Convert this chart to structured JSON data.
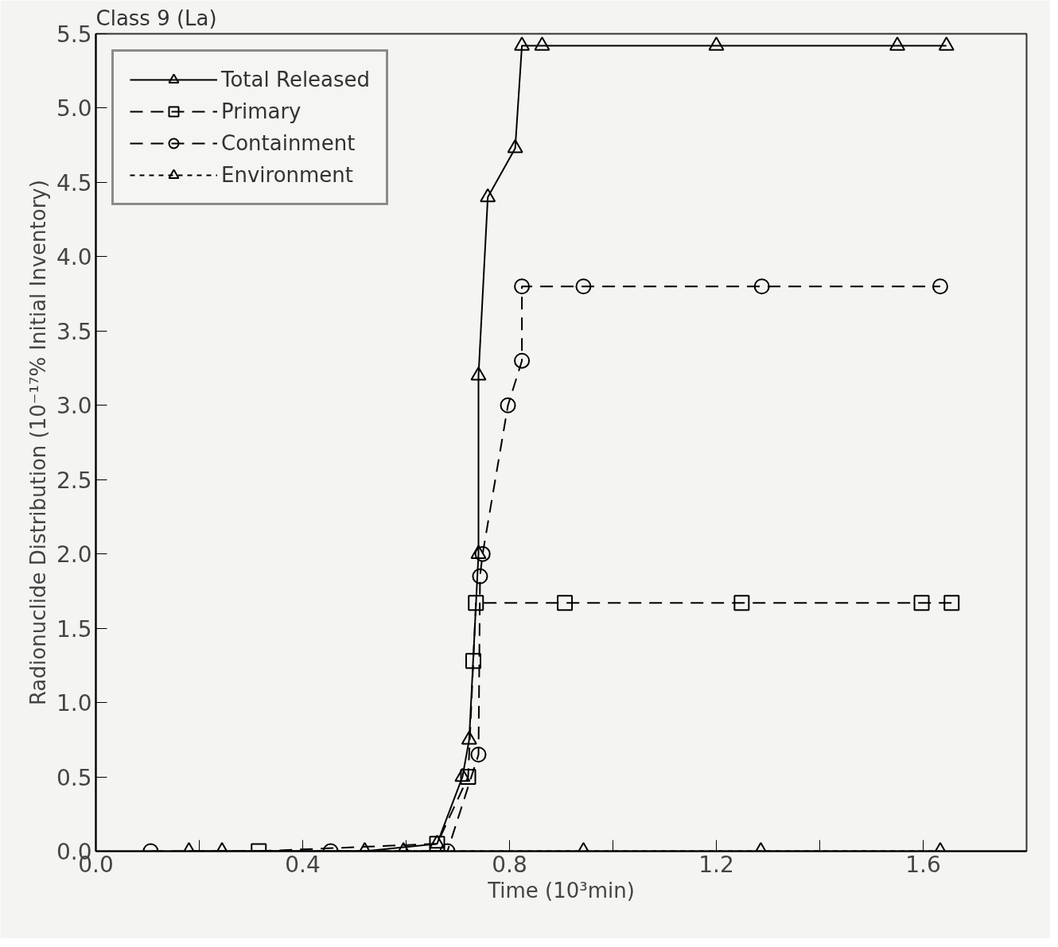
{
  "chart_data": {
    "type": "line",
    "title": "Class 9 (La)",
    "xlabel": "Time (10³min)",
    "ylabel": "Radionuclide Distribution (10⁻¹⁷% Initial Inventory)",
    "xlim": [
      0,
      1.8
    ],
    "ylim": [
      0,
      5.5
    ],
    "xticks": [
      {
        "value": 0,
        "label": "0.0"
      },
      {
        "value": 0.2,
        "label": null
      },
      {
        "value": 0.4,
        "label": "0.4"
      },
      {
        "value": 0.6,
        "label": null
      },
      {
        "value": 0.8,
        "label": "0.8"
      },
      {
        "value": 1.0,
        "label": null
      },
      {
        "value": 1.2,
        "label": "1.2"
      },
      {
        "value": 1.4,
        "label": null
      },
      {
        "value": 1.6,
        "label": "1.6"
      }
    ],
    "yticks": [
      {
        "value": 0,
        "label": "0.0"
      },
      {
        "value": 0.5,
        "label": "0.5"
      },
      {
        "value": 1.0,
        "label": "1.0"
      },
      {
        "value": 1.5,
        "label": "1.5"
      },
      {
        "value": 2.0,
        "label": "2.0"
      },
      {
        "value": 2.5,
        "label": "2.5"
      },
      {
        "value": 3.0,
        "label": "3.0"
      },
      {
        "value": 3.5,
        "label": "3.5"
      },
      {
        "value": 4.0,
        "label": "4.0"
      },
      {
        "value": 4.5,
        "label": "4.5"
      },
      {
        "value": 5.0,
        "label": "5.0"
      },
      {
        "value": 5.5,
        "label": "5.5"
      }
    ],
    "grid": false,
    "legend": "top left",
    "series": [
      {
        "name": "Total Released",
        "color": "#000000",
        "marker": "triangle",
        "line_style": "solid",
        "x": [
          0.18,
          0.52,
          0.66,
          0.709,
          0.722,
          0.74,
          0.74,
          0.758,
          0.811,
          0.824,
          0.863,
          1.2,
          1.55,
          1.645
        ],
        "values": [
          0,
          0,
          0.05,
          0.5,
          0.75,
          2.0,
          3.2,
          4.4,
          4.73,
          5.42,
          5.42,
          5.42,
          5.42,
          5.42
        ]
      },
      {
        "name": "Primary",
        "color": "#000000",
        "marker": "square",
        "line_style": "dashed",
        "x": [
          0.315,
          0.66,
          0.72,
          0.73,
          0.735,
          0.907,
          1.249,
          1.597,
          1.655
        ],
        "values": [
          0,
          0.05,
          0.5,
          1.28,
          1.67,
          1.67,
          1.67,
          1.67,
          1.67
        ]
      },
      {
        "name": "Containment",
        "color": "#000000",
        "marker": "circle",
        "line_style": "dashed",
        "x": [
          0.106,
          0.454,
          0.68,
          0.74,
          0.743,
          0.748,
          0.797,
          0.824,
          0.824,
          0.943,
          1.288,
          1.633
        ],
        "values": [
          0,
          0,
          0,
          0.65,
          1.85,
          2.0,
          3.0,
          3.3,
          3.8,
          3.8,
          3.8,
          3.8
        ]
      },
      {
        "name": "Environment",
        "color": "#000000",
        "marker": "triangle",
        "line_style": "dotted",
        "x": [
          0.244,
          0.595,
          0.943,
          1.286,
          1.633
        ],
        "values": [
          0,
          0,
          0,
          0,
          0
        ]
      }
    ]
  }
}
